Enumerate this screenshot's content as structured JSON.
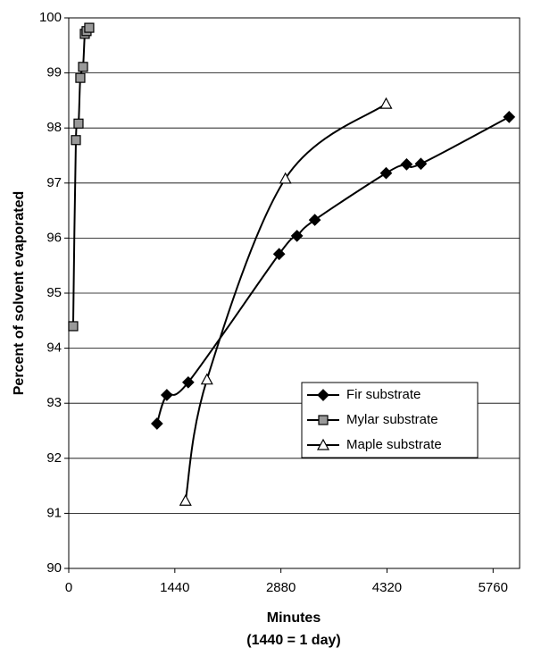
{
  "chart_data": {
    "type": "line",
    "ylabel": "Percent of solvent evaporated",
    "xlabel": "Minutes",
    "xlabel_note": "(1440 = 1 day)",
    "xlim": [
      0,
      6120
    ],
    "xticks": [
      0,
      1440,
      2880,
      4320,
      5760
    ],
    "ylim": [
      90,
      100
    ],
    "yticks": [
      90,
      91,
      92,
      93,
      94,
      95,
      96,
      97,
      98,
      99,
      100
    ],
    "grid": true,
    "legend": "lower right",
    "series": [
      {
        "name": "Fir substrate",
        "color": "#000000",
        "marker": "diamond",
        "x": [
          1198,
          1331,
          1622,
          2856,
          3098,
          3340,
          4308,
          4586,
          4780,
          5978
        ],
        "values": [
          92.63,
          93.15,
          93.38,
          95.71,
          96.04,
          96.33,
          97.18,
          97.34,
          97.35,
          98.2
        ]
      },
      {
        "name": "Mylar substrate",
        "color": "#999999",
        "marker": "square",
        "x": [
          60,
          97,
          133,
          157,
          194,
          218,
          242,
          278
        ],
        "values": [
          94.4,
          97.78,
          98.08,
          98.91,
          99.11,
          99.71,
          99.76,
          99.82
        ]
      },
      {
        "name": "Maple substrate",
        "color": "#ffffff",
        "marker": "triangle",
        "x": [
          1585,
          1876,
          2941,
          4308
        ],
        "values": [
          91.23,
          93.43,
          97.08,
          98.44
        ]
      }
    ]
  }
}
